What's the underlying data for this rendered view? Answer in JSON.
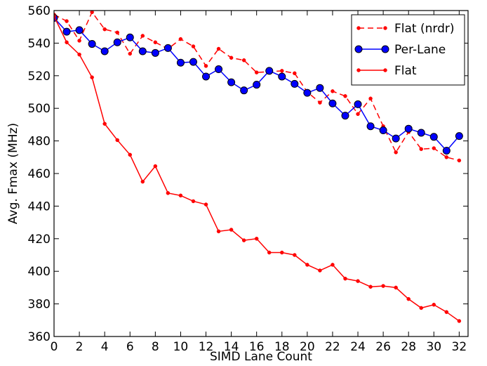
{
  "chart_data": {
    "type": "line",
    "title": "",
    "xlabel": "SIMD Lane Count",
    "ylabel": "Avg. Fmax (MHz)",
    "xlim": [
      0,
      32.7
    ],
    "ylim": [
      360,
      560
    ],
    "xticks": [
      0,
      2,
      4,
      6,
      8,
      10,
      12,
      14,
      16,
      18,
      20,
      22,
      24,
      26,
      28,
      30,
      32
    ],
    "yticks": [
      360,
      380,
      400,
      420,
      440,
      460,
      480,
      500,
      520,
      540,
      560
    ],
    "grid": false,
    "legend_position": "top-right",
    "x": [
      0,
      1,
      2,
      3,
      4,
      5,
      6,
      7,
      8,
      9,
      10,
      11,
      12,
      13,
      14,
      15,
      16,
      17,
      18,
      19,
      20,
      21,
      22,
      23,
      24,
      25,
      26,
      27,
      28,
      29,
      30,
      31,
      32
    ],
    "series": [
      {
        "name": "Flat (nrdr)",
        "color": "#ff0000",
        "style": "dashed",
        "marker": "small-dot",
        "values": [
          557.5,
          553.5,
          541.5,
          559.0,
          548.5,
          546.5,
          533.5,
          544.5,
          540.5,
          536.5,
          542.5,
          538.0,
          526.0,
          536.5,
          531.0,
          529.5,
          522.0,
          522.5,
          523.0,
          521.5,
          510.0,
          503.5,
          510.5,
          507.5,
          496.5,
          506.0,
          489.0,
          473.0,
          485.5,
          475.0,
          475.5,
          470.0,
          468.0
        ]
      },
      {
        "name": "Per-Lane",
        "color": "#0000ff",
        "style": "solid",
        "marker": "big-dot",
        "values": [
          555.5,
          547.0,
          548.0,
          539.5,
          535.0,
          540.5,
          543.5,
          535.0,
          534.0,
          537.0,
          528.0,
          528.5,
          519.5,
          524.0,
          516.0,
          511.0,
          514.5,
          523.0,
          519.5,
          515.0,
          509.5,
          512.5,
          503.0,
          495.5,
          502.5,
          489.0,
          486.5,
          481.5,
          487.5,
          485.0,
          482.5,
          474.0,
          483.0
        ]
      },
      {
        "name": "Flat",
        "color": "#ff0000",
        "style": "solid",
        "marker": "small-dot",
        "values": [
          556.5,
          540.5,
          533.0,
          519.0,
          490.5,
          480.5,
          471.5,
          455.0,
          464.5,
          448.0,
          446.5,
          443.0,
          441.0,
          424.5,
          425.5,
          419.0,
          420.0,
          411.5,
          411.5,
          410.0,
          404.0,
          400.5,
          404.0,
          395.5,
          394.0,
          390.5,
          391.0,
          390.0,
          383.0,
          377.5,
          379.5,
          375.0,
          369.5
        ]
      }
    ]
  }
}
